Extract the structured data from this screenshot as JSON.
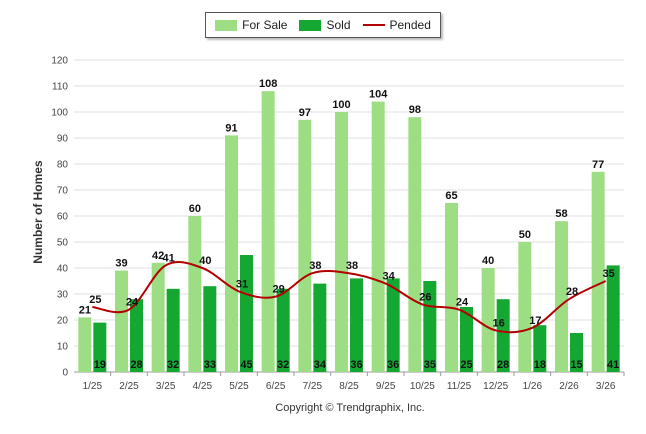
{
  "chart_data": {
    "type": "bar",
    "categories": [
      "1/25",
      "2/25",
      "3/25",
      "4/25",
      "5/25",
      "6/25",
      "7/25",
      "8/25",
      "9/25",
      "10/25",
      "11/25",
      "12/25",
      "1/26",
      "2/26",
      "3/26"
    ],
    "series": [
      {
        "name": "For Sale",
        "kind": "bar",
        "color": "#9ddd83",
        "values": [
          21,
          39,
          42,
          60,
          91,
          108,
          97,
          100,
          104,
          98,
          65,
          40,
          50,
          58,
          77
        ]
      },
      {
        "name": "Sold",
        "kind": "bar",
        "color": "#14a832",
        "values": [
          19,
          28,
          32,
          33,
          45,
          32,
          34,
          36,
          36,
          35,
          25,
          28,
          18,
          15,
          41
        ]
      },
      {
        "name": "Pended",
        "kind": "line",
        "color": "#b30000",
        "values": [
          25,
          24,
          41,
          40,
          31,
          29,
          38,
          38,
          34,
          26,
          24,
          16,
          17,
          28,
          35
        ]
      }
    ],
    "title": "",
    "xlabel": "",
    "ylabel": "Number of Homes",
    "ylim": [
      0,
      120
    ],
    "yticks": [
      0,
      10,
      20,
      30,
      40,
      50,
      60,
      70,
      80,
      90,
      100,
      110,
      120
    ],
    "grid": true,
    "legend_position": "top-center"
  },
  "legend": {
    "for_sale": "For Sale",
    "sold": "Sold",
    "pended": "Pended"
  },
  "colors": {
    "for_sale": "#9ddd83",
    "sold": "#14a832",
    "pended": "#b30000"
  },
  "credit": "Copyright © Trendgraphix, Inc."
}
